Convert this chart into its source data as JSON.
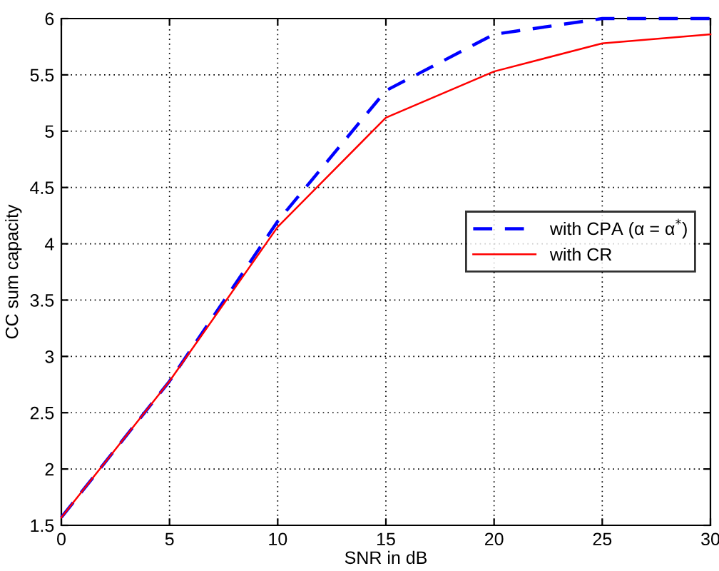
{
  "chart_data": {
    "type": "line",
    "xlabel": "SNR in dB",
    "ylabel": "CC sum capacity",
    "x": [
      0,
      5,
      10,
      15,
      20,
      25,
      30
    ],
    "series": [
      {
        "name": "with CPA (α = α$^{*}$)",
        "color": "#0000ff",
        "line_style": "dashed",
        "values": [
          1.57,
          2.78,
          4.2,
          5.36,
          5.86,
          6.0,
          6.0
        ]
      },
      {
        "name": "with CR",
        "color": "#ff0000",
        "line_style": "solid",
        "values": [
          1.57,
          2.78,
          4.15,
          5.12,
          5.53,
          5.78,
          5.86
        ]
      }
    ],
    "xlim": [
      0,
      30
    ],
    "xticks": [
      0,
      5,
      10,
      15,
      20,
      25,
      30
    ],
    "ylim": [
      1.5,
      6
    ],
    "yticks": [
      1.5,
      2,
      2.5,
      3,
      3.5,
      4,
      4.5,
      5,
      5.5,
      6
    ],
    "grid": true,
    "legend": "right",
    "marker": "none"
  }
}
